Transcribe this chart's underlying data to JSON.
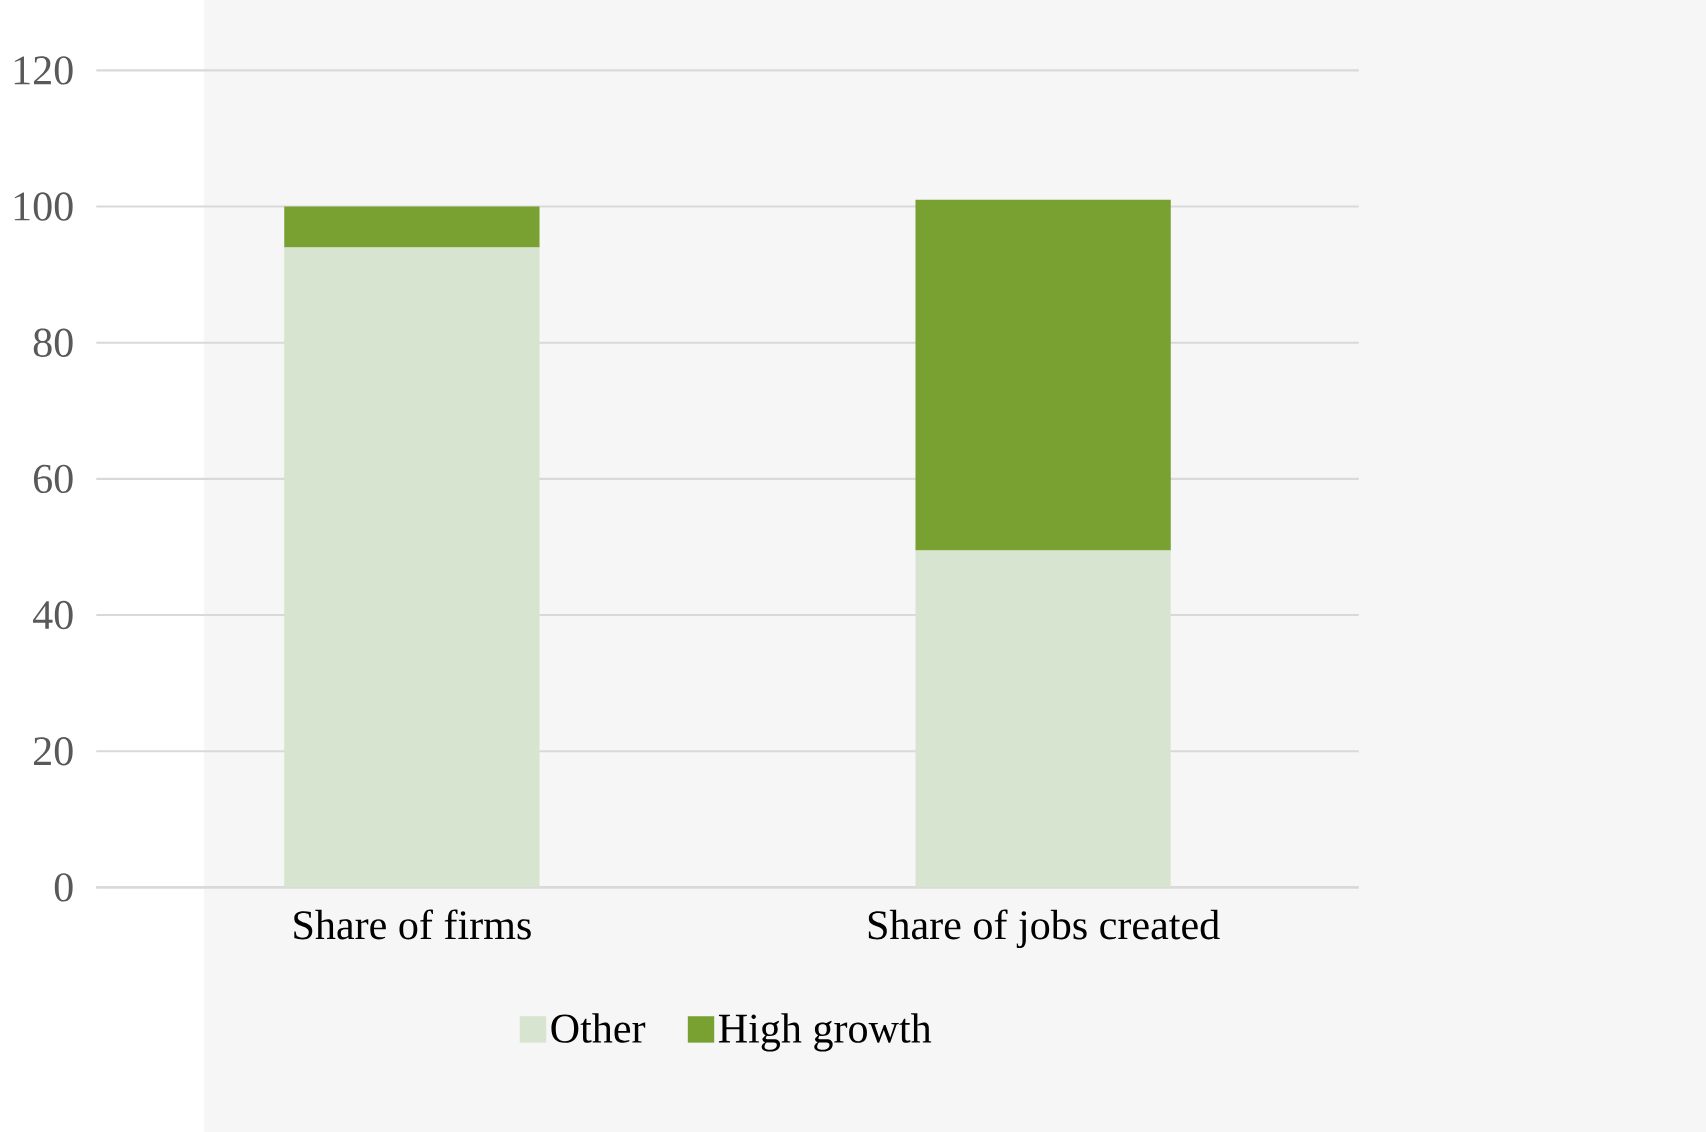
{
  "chart_data": {
    "type": "bar",
    "stacked": true,
    "categories": [
      "Share of firms",
      "Share of jobs created"
    ],
    "series": [
      {
        "name": "Other",
        "color": "#d7e4d0",
        "values": [
          94,
          49.5
        ]
      },
      {
        "name": "High growth",
        "color": "#78a132",
        "values": [
          6,
          51.5
        ]
      }
    ],
    "ylim": [
      0,
      120
    ],
    "yticks": [
      0,
      20,
      40,
      60,
      80,
      100,
      120
    ],
    "grid": "y",
    "legend": "bottom"
  }
}
